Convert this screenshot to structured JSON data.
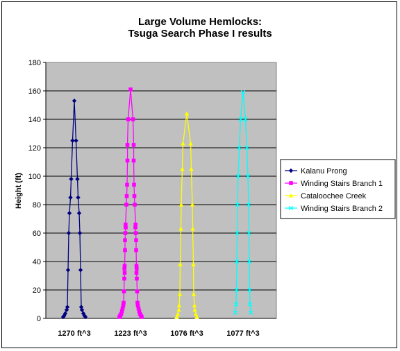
{
  "chart_data": {
    "type": "line",
    "title_lines": [
      "Large Volume Hemlocks:",
      "Tsuga Search Phase I results"
    ],
    "ylabel": "Height (ft)",
    "xlabel": "",
    "ylim": [
      0,
      180
    ],
    "yticks": [
      0,
      20,
      40,
      60,
      80,
      100,
      120,
      140,
      160,
      180
    ],
    "grid": true,
    "legend_position": "right",
    "plot_background": "#c0c0c0",
    "categories": [
      "1270 ft^3",
      "1223 ft^3",
      "1076 ft^3",
      "1077 ft^3"
    ],
    "x_note": "x = half-width of tree profile (ft), centered on each tree's category",
    "series": [
      {
        "name": "Kalanu Prong",
        "color": "#000080",
        "marker": "diamond",
        "points": [
          [
            -1.6,
            1
          ],
          [
            -1.45,
            2
          ],
          [
            -1.3,
            3.5
          ],
          [
            -1.1,
            6
          ],
          [
            -1.0,
            8
          ],
          [
            -0.9,
            34
          ],
          [
            -0.8,
            60
          ],
          [
            -0.7,
            74
          ],
          [
            -0.55,
            85
          ],
          [
            -0.45,
            98
          ],
          [
            -0.25,
            125
          ],
          [
            0,
            153
          ],
          [
            0.25,
            125
          ],
          [
            0.45,
            98
          ],
          [
            0.55,
            85
          ],
          [
            0.7,
            74
          ],
          [
            0.8,
            60
          ],
          [
            0.9,
            34
          ],
          [
            1.0,
            8
          ],
          [
            1.1,
            6
          ],
          [
            1.3,
            3.5
          ],
          [
            1.45,
            2
          ],
          [
            1.6,
            1
          ]
        ]
      },
      {
        "name": "Winding Stairs Branch 1",
        "color": "#ff00ff",
        "marker": "square",
        "points": [
          [
            -1.6,
            1
          ],
          [
            -1.5,
            2
          ],
          [
            -1.35,
            3
          ],
          [
            -1.25,
            5
          ],
          [
            -1.15,
            7
          ],
          [
            -1.05,
            9
          ],
          [
            -1.0,
            11
          ],
          [
            -0.95,
            19
          ],
          [
            -0.9,
            28
          ],
          [
            -0.85,
            32
          ],
          [
            -0.88,
            35
          ],
          [
            -0.85,
            37
          ],
          [
            -0.8,
            48
          ],
          [
            -0.8,
            55
          ],
          [
            -0.75,
            60
          ],
          [
            -0.7,
            64
          ],
          [
            -0.72,
            66
          ],
          [
            -0.6,
            80
          ],
          [
            -0.55,
            86
          ],
          [
            -0.5,
            94
          ],
          [
            -0.45,
            111
          ],
          [
            -0.45,
            122
          ],
          [
            -0.35,
            140
          ],
          [
            0,
            161
          ],
          [
            0.35,
            140
          ],
          [
            0.45,
            122
          ],
          [
            0.45,
            111
          ],
          [
            0.5,
            94
          ],
          [
            0.55,
            86
          ],
          [
            0.6,
            80
          ],
          [
            0.72,
            66
          ],
          [
            0.7,
            64
          ],
          [
            0.75,
            60
          ],
          [
            0.8,
            55
          ],
          [
            0.8,
            48
          ],
          [
            0.85,
            37
          ],
          [
            0.88,
            35
          ],
          [
            0.85,
            32
          ],
          [
            0.9,
            28
          ],
          [
            0.95,
            19
          ],
          [
            1.0,
            11
          ],
          [
            1.05,
            9
          ],
          [
            1.15,
            7
          ],
          [
            1.25,
            5
          ],
          [
            1.35,
            3
          ],
          [
            1.5,
            2
          ],
          [
            1.6,
            1
          ]
        ]
      },
      {
        "name": "Cataloochee Creek",
        "color": "#ffff00",
        "marker": "triangle",
        "points": [
          [
            -1.45,
            1
          ],
          [
            -1.3,
            3
          ],
          [
            -1.15,
            6
          ],
          [
            -1.1,
            9
          ],
          [
            -1.0,
            17
          ],
          [
            -0.95,
            38
          ],
          [
            -0.85,
            63
          ],
          [
            -0.8,
            80
          ],
          [
            -0.65,
            105
          ],
          [
            -0.55,
            123
          ],
          [
            0,
            144
          ],
          [
            0.55,
            123
          ],
          [
            0.65,
            105
          ],
          [
            0.8,
            80
          ],
          [
            0.85,
            63
          ],
          [
            0.95,
            38
          ],
          [
            1.0,
            17
          ],
          [
            1.1,
            9
          ],
          [
            1.15,
            6
          ],
          [
            1.3,
            3
          ],
          [
            1.45,
            1
          ]
        ]
      },
      {
        "name": "Winding Stairs Branch 2",
        "color": "#00ffff",
        "marker": "x",
        "points": [
          [
            -1.1,
            4
          ],
          [
            -1.0,
            10
          ],
          [
            -0.95,
            20
          ],
          [
            -0.9,
            40
          ],
          [
            -0.85,
            60
          ],
          [
            -0.8,
            80
          ],
          [
            -0.7,
            100
          ],
          [
            -0.55,
            120
          ],
          [
            -0.35,
            140
          ],
          [
            0,
            159
          ],
          [
            0.35,
            140
          ],
          [
            0.55,
            120
          ],
          [
            0.7,
            100
          ],
          [
            0.8,
            80
          ],
          [
            0.85,
            60
          ],
          [
            0.9,
            40
          ],
          [
            0.95,
            20
          ],
          [
            1.0,
            10
          ],
          [
            1.1,
            4
          ]
        ]
      }
    ]
  }
}
